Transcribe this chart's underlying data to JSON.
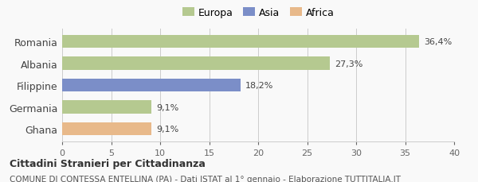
{
  "categories": [
    "Romania",
    "Albania",
    "Filippine",
    "Germania",
    "Ghana"
  ],
  "values": [
    36.4,
    27.3,
    18.2,
    9.1,
    9.1
  ],
  "labels": [
    "36,4%",
    "27,3%",
    "18,2%",
    "9,1%",
    "9,1%"
  ],
  "colors": [
    "#b5c990",
    "#b5c990",
    "#7b8ec8",
    "#b5c990",
    "#e8b98a"
  ],
  "legend_items": [
    {
      "label": "Europa",
      "color": "#b5c990"
    },
    {
      "label": "Asia",
      "color": "#7b8ec8"
    },
    {
      "label": "Africa",
      "color": "#e8b98a"
    }
  ],
  "xlim": [
    0,
    40
  ],
  "xticks": [
    0,
    5,
    10,
    15,
    20,
    25,
    30,
    35,
    40
  ],
  "title_bold": "Cittadini Stranieri per Cittadinanza",
  "subtitle": "COMUNE DI CONTESSA ENTELLINA (PA) - Dati ISTAT al 1° gennaio - Elaborazione TUTTITALIA.IT",
  "background_color": "#f9f9f9",
  "bar_height": 0.6
}
